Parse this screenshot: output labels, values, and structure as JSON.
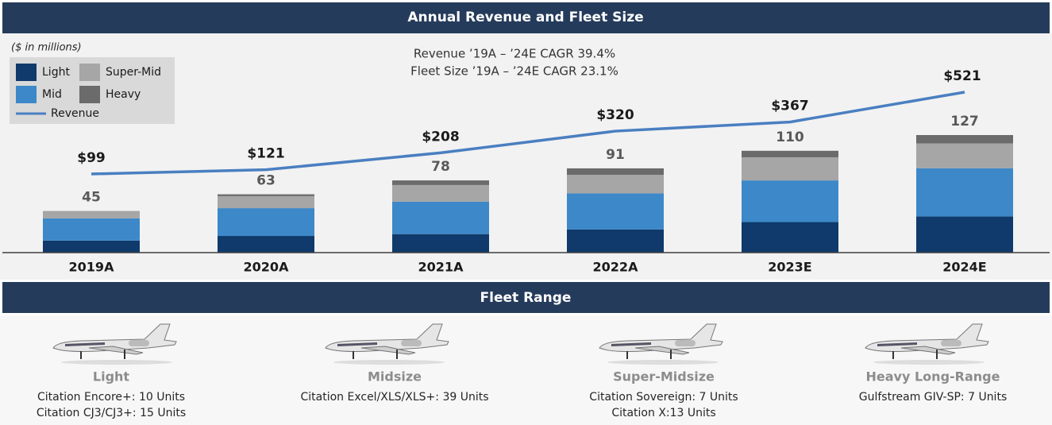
{
  "chart_data": {
    "type": "stacked_bar_line",
    "title": "Annual Revenue and Fleet Size",
    "unit_note": "($ in millions)",
    "annotations": [
      "Revenue ’19A – ’24E CAGR 39.4%",
      "Fleet Size ’19A – ’24E CAGR 23.1%"
    ],
    "categories": [
      "2019A",
      "2020A",
      "2021A",
      "2022A",
      "2023E",
      "2024E"
    ],
    "series": [
      {
        "name": "Light",
        "color": "#0f3a6b",
        "values": [
          13,
          18,
          20,
          25,
          33,
          39
        ]
      },
      {
        "name": "Mid",
        "color": "#3d88c8",
        "values": [
          24,
          30,
          35,
          39,
          45,
          52
        ]
      },
      {
        "name": "Super-Mid",
        "color": "#a6a6a6",
        "values": [
          8,
          13,
          18,
          20,
          25,
          27
        ]
      },
      {
        "name": "Heavy",
        "color": "#6b6b6b",
        "values": [
          0,
          2,
          5,
          7,
          7,
          9
        ]
      }
    ],
    "totals": [
      45,
      63,
      78,
      91,
      110,
      127
    ],
    "line": {
      "name": "Revenue",
      "color": "#4a7fc1",
      "values": [
        99,
        121,
        208,
        320,
        367,
        521
      ],
      "value_labels": [
        "$99",
        "$121",
        "$208",
        "$320",
        "$367",
        "$521"
      ]
    }
  },
  "fleet_range": {
    "title": "Fleet Range",
    "items": [
      {
        "label": "Light",
        "lines": [
          "Citation Encore+: 10 Units",
          "Citation CJ3/CJ3+: 15 Units"
        ]
      },
      {
        "label": "Midsize",
        "lines": [
          "Citation Excel/XLS/XLS+: 39 Units"
        ]
      },
      {
        "label": "Super-Midsize",
        "lines": [
          "Citation Sovereign: 7 Units",
          "Citation X:13 Units"
        ]
      },
      {
        "label": "Heavy Long-Range",
        "lines": [
          "Gulfstream GIV-SP: 7 Units"
        ]
      }
    ]
  }
}
